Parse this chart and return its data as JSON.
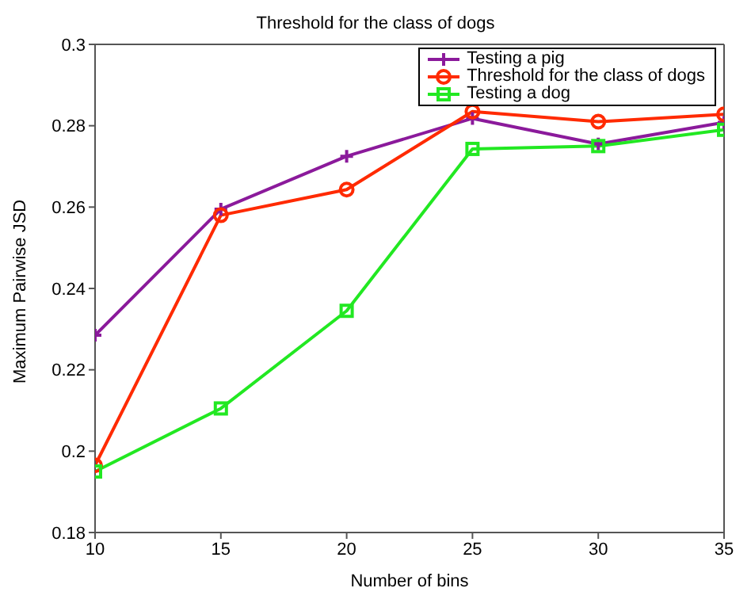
{
  "chart_data": {
    "type": "line",
    "title": "Threshold for the class of dogs",
    "xlabel": "Number of bins",
    "ylabel": "Maximum Pairwise JSD",
    "x": [
      10,
      15,
      20,
      25,
      30,
      35
    ],
    "series": [
      {
        "name": "Testing a pig",
        "color": "#8b1a9b",
        "marker": "cross",
        "values": [
          0.2285,
          0.2595,
          0.2725,
          0.2818,
          0.2755,
          0.2808
        ]
      },
      {
        "name": "Threshold for the class of dogs",
        "color": "#ff2a00",
        "marker": "circle",
        "values": [
          0.1965,
          0.258,
          0.2643,
          0.2835,
          0.281,
          0.2828
        ]
      },
      {
        "name": "Testing a dog",
        "color": "#22e822",
        "marker": "square",
        "values": [
          0.195,
          0.2105,
          0.2345,
          0.2743,
          0.275,
          0.279
        ]
      }
    ],
    "xlim": [
      10,
      35
    ],
    "xticks": [
      10,
      15,
      20,
      25,
      30,
      35
    ],
    "ylim": [
      0.18,
      0.3
    ],
    "yticks": [
      0.18,
      0.2,
      0.22,
      0.24,
      0.26,
      0.28,
      0.3
    ],
    "grid": false,
    "legend": "top right",
    "line_style": "solid"
  }
}
